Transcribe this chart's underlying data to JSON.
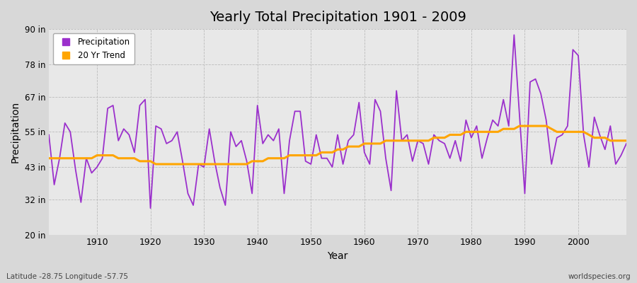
{
  "title": "Yearly Total Precipitation 1901 - 2009",
  "xlabel": "Year",
  "ylabel": "Precipitation",
  "footnote_left": "Latitude -28.75 Longitude -57.75",
  "footnote_right": "worldspecies.org",
  "precip_color": "#9B30CC",
  "trend_color": "#FFA500",
  "fig_bg_color": "#D8D8D8",
  "plot_bg_color": "#E8E8E8",
  "ylim": [
    20,
    90
  ],
  "yticks": [
    20,
    32,
    43,
    55,
    67,
    78,
    90
  ],
  "ytick_labels": [
    "20 in",
    "32 in",
    "43 in",
    "55 in",
    "67 in",
    "78 in",
    "90 in"
  ],
  "xlim": [
    1901,
    2009
  ],
  "xticks": [
    1910,
    1920,
    1930,
    1940,
    1950,
    1960,
    1970,
    1980,
    1990,
    2000
  ],
  "years": [
    1901,
    1902,
    1903,
    1904,
    1905,
    1906,
    1907,
    1908,
    1909,
    1910,
    1911,
    1912,
    1913,
    1914,
    1915,
    1916,
    1917,
    1918,
    1919,
    1920,
    1921,
    1922,
    1923,
    1924,
    1925,
    1926,
    1927,
    1928,
    1929,
    1930,
    1931,
    1932,
    1933,
    1934,
    1935,
    1936,
    1937,
    1938,
    1939,
    1940,
    1941,
    1942,
    1943,
    1944,
    1945,
    1946,
    1947,
    1948,
    1949,
    1950,
    1951,
    1952,
    1953,
    1954,
    1955,
    1956,
    1957,
    1958,
    1959,
    1960,
    1961,
    1962,
    1963,
    1964,
    1965,
    1966,
    1967,
    1968,
    1969,
    1970,
    1971,
    1972,
    1973,
    1974,
    1975,
    1976,
    1977,
    1978,
    1979,
    1980,
    1981,
    1982,
    1983,
    1984,
    1985,
    1986,
    1987,
    1988,
    1989,
    1990,
    1991,
    1992,
    1993,
    1994,
    1995,
    1996,
    1997,
    1998,
    1999,
    2000,
    2001,
    2002,
    2003,
    2004,
    2005,
    2006,
    2007,
    2008,
    2009
  ],
  "precip": [
    54,
    37,
    46,
    58,
    55,
    42,
    31,
    46,
    41,
    43,
    46,
    63,
    64,
    52,
    56,
    54,
    48,
    64,
    66,
    29,
    57,
    56,
    51,
    52,
    55,
    45,
    34,
    30,
    44,
    43,
    56,
    45,
    36,
    30,
    55,
    50,
    52,
    45,
    34,
    64,
    51,
    54,
    52,
    56,
    34,
    52,
    62,
    62,
    45,
    44,
    54,
    46,
    46,
    43,
    54,
    44,
    52,
    54,
    65,
    48,
    44,
    66,
    62,
    46,
    35,
    69,
    52,
    54,
    45,
    52,
    51,
    44,
    54,
    52,
    51,
    46,
    52,
    45,
    59,
    53,
    57,
    46,
    53,
    59,
    57,
    66,
    57,
    88,
    61,
    34,
    72,
    73,
    68,
    59,
    44,
    53,
    54,
    57,
    83,
    81,
    54,
    43,
    60,
    54,
    49,
    57,
    44,
    47,
    51
  ],
  "trend": [
    46,
    46,
    46,
    46,
    46,
    46,
    46,
    46,
    46,
    47,
    47,
    47,
    47,
    46,
    46,
    46,
    46,
    45,
    45,
    45,
    44,
    44,
    44,
    44,
    44,
    44,
    44,
    44,
    44,
    44,
    44,
    44,
    44,
    44,
    44,
    44,
    44,
    44,
    45,
    45,
    45,
    46,
    46,
    46,
    46,
    47,
    47,
    47,
    47,
    47,
    47,
    48,
    48,
    48,
    49,
    49,
    50,
    50,
    50,
    51,
    51,
    51,
    51,
    52,
    52,
    52,
    52,
    52,
    52,
    52,
    52,
    52,
    53,
    53,
    53,
    54,
    54,
    54,
    55,
    55,
    55,
    55,
    55,
    55,
    55,
    56,
    56,
    56,
    57,
    57,
    57,
    57,
    57,
    57,
    56,
    55,
    55,
    55,
    55,
    55,
    55,
    54,
    53,
    53,
    53,
    52,
    52,
    52,
    52
  ]
}
